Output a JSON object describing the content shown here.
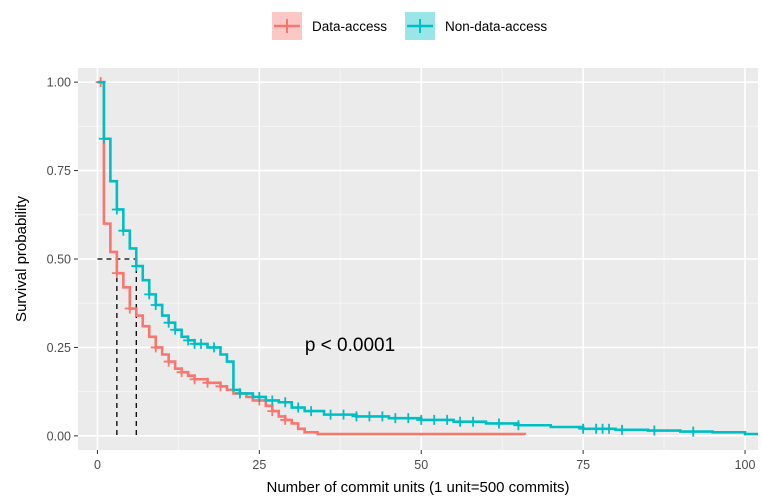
{
  "chart_data": {
    "type": "line",
    "xlabel": "Number of commit units (1 unit=500 commits)",
    "ylabel": "Survival probability",
    "xlim": [
      -3,
      102
    ],
    "ylim": [
      -0.04,
      1.04
    ],
    "x_ticks": [
      0,
      25,
      50,
      75,
      100
    ],
    "y_ticks": [
      0.0,
      0.25,
      0.5,
      0.75,
      1.0
    ],
    "x_tick_labels": [
      "0",
      "25",
      "50",
      "75",
      "100"
    ],
    "y_tick_labels": [
      "0.00",
      "0.25",
      "0.50",
      "0.75",
      "1.00"
    ],
    "grid": true,
    "legend_position": "top",
    "annotation": "p < 0.0001",
    "annotation_at": [
      39,
      0.24
    ],
    "median_survival": {
      "y": 0.5,
      "x": [
        3,
        6
      ]
    },
    "series": [
      {
        "name": "Data-access",
        "color": "#F8766D",
        "points": [
          [
            0,
            1.0
          ],
          [
            1,
            0.84
          ],
          [
            1,
            0.6
          ],
          [
            2,
            0.52
          ],
          [
            3,
            0.46
          ],
          [
            4,
            0.42
          ],
          [
            5,
            0.36
          ],
          [
            6,
            0.34
          ],
          [
            7,
            0.31
          ],
          [
            8,
            0.28
          ],
          [
            9,
            0.25
          ],
          [
            10,
            0.23
          ],
          [
            11,
            0.21
          ],
          [
            12,
            0.19
          ],
          [
            13,
            0.18
          ],
          [
            14,
            0.17
          ],
          [
            15,
            0.16
          ],
          [
            17,
            0.15
          ],
          [
            19,
            0.14
          ],
          [
            20,
            0.13
          ],
          [
            21,
            0.12
          ],
          [
            23,
            0.11
          ],
          [
            24,
            0.1
          ],
          [
            26,
            0.085
          ],
          [
            27,
            0.07
          ],
          [
            28,
            0.055
          ],
          [
            29,
            0.045
          ],
          [
            30,
            0.035
          ],
          [
            31,
            0.02
          ],
          [
            32,
            0.01
          ],
          [
            34,
            0.005
          ],
          [
            66,
            0.003
          ]
        ],
        "censored_x": [
          0.5,
          3,
          5,
          9,
          11,
          13,
          15,
          17,
          19,
          22,
          25,
          27,
          29
        ]
      },
      {
        "name": "Non-data-access",
        "color": "#00BFC4",
        "points": [
          [
            0,
            1.0
          ],
          [
            1,
            0.84
          ],
          [
            2,
            0.72
          ],
          [
            3,
            0.64
          ],
          [
            4,
            0.58
          ],
          [
            5,
            0.53
          ],
          [
            6,
            0.48
          ],
          [
            7,
            0.44
          ],
          [
            8,
            0.4
          ],
          [
            9,
            0.37
          ],
          [
            10,
            0.34
          ],
          [
            11,
            0.32
          ],
          [
            12,
            0.3
          ],
          [
            13,
            0.28
          ],
          [
            14,
            0.27
          ],
          [
            15,
            0.26
          ],
          [
            17,
            0.25
          ],
          [
            19,
            0.23
          ],
          [
            20,
            0.21
          ],
          [
            21,
            0.13
          ],
          [
            22,
            0.12
          ],
          [
            24,
            0.11
          ],
          [
            26,
            0.1
          ],
          [
            28,
            0.095
          ],
          [
            30,
            0.08
          ],
          [
            32,
            0.07
          ],
          [
            35,
            0.06
          ],
          [
            40,
            0.055
          ],
          [
            45,
            0.05
          ],
          [
            50,
            0.045
          ],
          [
            55,
            0.04
          ],
          [
            60,
            0.035
          ],
          [
            65,
            0.03
          ],
          [
            70,
            0.025
          ],
          [
            75,
            0.02
          ],
          [
            80,
            0.017
          ],
          [
            85,
            0.015
          ],
          [
            90,
            0.012
          ],
          [
            95,
            0.01
          ],
          [
            100,
            0.005
          ],
          [
            102,
            0.005
          ]
        ],
        "censored_x": [
          1,
          3,
          4,
          6,
          8,
          9,
          11,
          12,
          14,
          15,
          16,
          18,
          22,
          25,
          27,
          29,
          31,
          33,
          36,
          38,
          40,
          42,
          44,
          46,
          48,
          50,
          52,
          54,
          56,
          58,
          62,
          65,
          75,
          77,
          78,
          79,
          81,
          86,
          92
        ]
      }
    ]
  }
}
